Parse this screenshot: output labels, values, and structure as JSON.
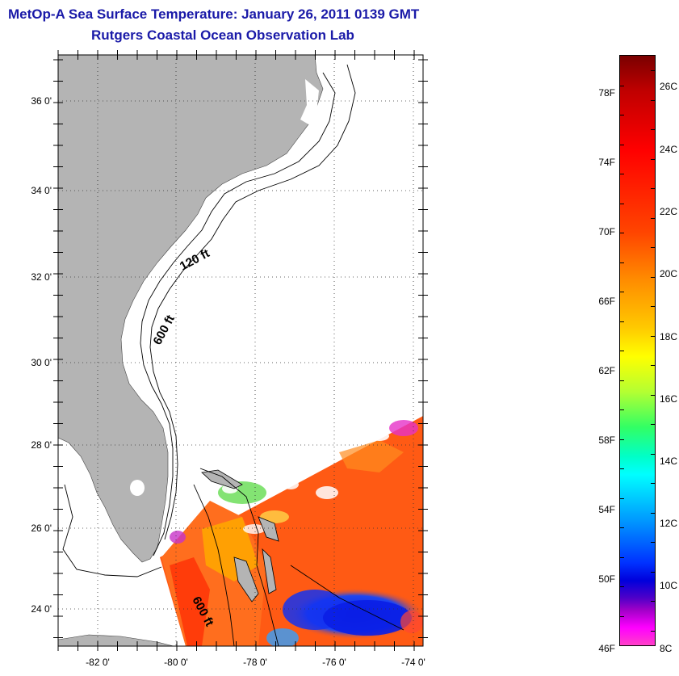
{
  "title": {
    "line1": "MetOp-A Sea Surface Temperature:  January 26, 2011 0139 GMT",
    "line2": "Rutgers Coastal Ocean Observation Lab"
  },
  "map": {
    "lat_labels": [
      "36 0'",
      "34 0'",
      "32 0'",
      "30 0'",
      "28 0'",
      "26 0'",
      "24 0'"
    ],
    "lon_labels": [
      "-82 0'",
      "-80 0'",
      "-78 0'",
      "-76 0'",
      "-74 0'"
    ],
    "contour_labels": [
      "120 ft",
      "600 ft",
      "600 ft"
    ]
  },
  "colorbar": {
    "fahrenheit": [
      "78F",
      "74F",
      "70F",
      "66F",
      "62F",
      "58F",
      "54F",
      "50F",
      "46F"
    ],
    "celsius": [
      "26C",
      "24C",
      "22C",
      "20C",
      "18C",
      "16C",
      "14C",
      "12C",
      "10C",
      "8C"
    ]
  },
  "colors": {
    "title": "#1a1aa8",
    "land": "#b4b4b4",
    "warm_water": "#ff5a14",
    "cold_water": "#0a28e6"
  }
}
